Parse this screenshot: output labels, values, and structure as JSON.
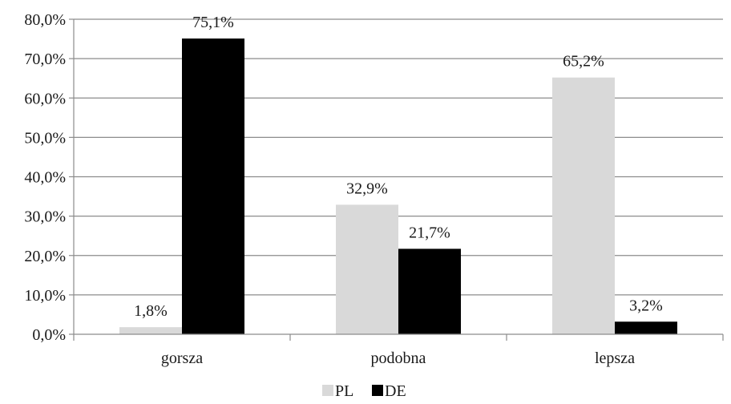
{
  "chart_data": {
    "type": "bar",
    "categories": [
      "gorsza",
      "podobna",
      "lepsza"
    ],
    "series": [
      {
        "name": "PL",
        "values": [
          1.8,
          32.9,
          65.2
        ],
        "labels": [
          "1,8%",
          "32,9%",
          "65,2%"
        ],
        "color": "#d9d9d9"
      },
      {
        "name": "DE",
        "values": [
          75.1,
          21.7,
          3.2
        ],
        "labels": [
          "75,1%",
          "21,7%",
          "3,2%"
        ],
        "color": "#000000"
      }
    ],
    "y_ticks": [
      "0,0%",
      "10,0%",
      "20,0%",
      "30,0%",
      "40,0%",
      "50,0%",
      "60,0%",
      "70,0%",
      "80,0%"
    ],
    "ylim": [
      0,
      80
    ],
    "grid": true,
    "legend_position": "bottom",
    "title": "",
    "xlabel": "",
    "ylabel": ""
  }
}
